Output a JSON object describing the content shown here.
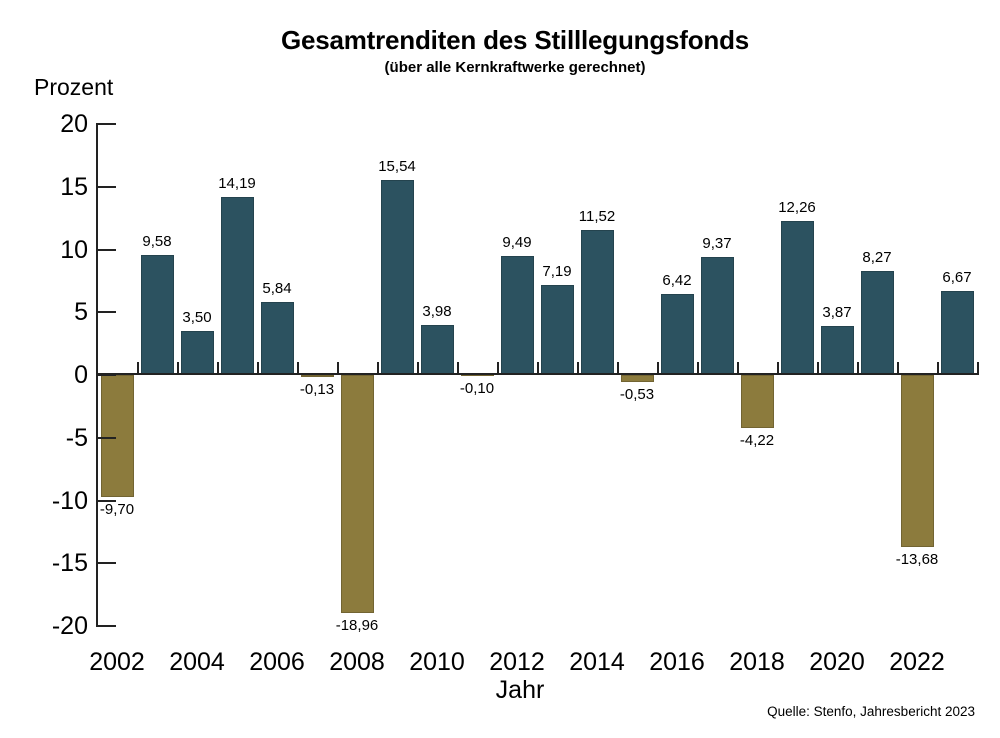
{
  "title": "Gesamtrenditen des Stilllegungsfonds",
  "subtitle": "(über alle Kernkraftwerke gerechnet)",
  "y_axis_title": "Prozent",
  "x_axis_title": "Jahr",
  "source": "Quelle: Stenfo, Jahresbericht 2023",
  "colors": {
    "positive_bar": "#2c5260",
    "negative_bar": "#8c7b3d",
    "axis": "#222222",
    "text": "#000000",
    "background": "#ffffff"
  },
  "chart_data": {
    "type": "bar",
    "title": "Gesamtrenditen des Stilllegungsfonds",
    "subtitle": "(über alle Kernkraftwerke gerechnet)",
    "xlabel": "Jahr",
    "ylabel": "Prozent",
    "ylim": [
      -20,
      20
    ],
    "ytick_step": 5,
    "ytick_labels": [
      "20",
      "15",
      "10",
      "5",
      "0",
      "-5",
      "-10",
      "-15",
      "-20"
    ],
    "grid": false,
    "legend": false,
    "x": [
      2002,
      2003,
      2004,
      2005,
      2006,
      2007,
      2008,
      2009,
      2010,
      2011,
      2012,
      2013,
      2014,
      2015,
      2016,
      2017,
      2018,
      2019,
      2020,
      2021,
      2022,
      2023
    ],
    "values": [
      -9.7,
      9.58,
      3.5,
      14.19,
      5.84,
      -0.13,
      -18.96,
      15.54,
      3.98,
      -0.1,
      9.49,
      7.19,
      11.52,
      -0.53,
      6.42,
      9.37,
      -4.22,
      12.26,
      3.87,
      8.27,
      -13.68,
      6.67
    ],
    "value_labels": [
      "-9,70",
      "9,58",
      "3,50",
      "14,19",
      "5,84",
      "-0,13",
      "-18,96",
      "15,54",
      "3,98",
      "-0,10",
      "9,49",
      "7,19",
      "11,52",
      "-0,53",
      "6,42",
      "9,37",
      "-4,22",
      "12,26",
      "3,87",
      "8,27",
      "-13,68",
      "6,67"
    ],
    "xtick_labels": [
      "2002",
      "2004",
      "2006",
      "2008",
      "2010",
      "2012",
      "2014",
      "2016",
      "2018",
      "2020",
      "2022"
    ]
  }
}
